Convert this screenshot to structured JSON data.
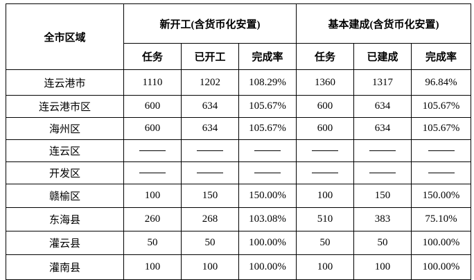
{
  "headers": {
    "region": "全市区域",
    "group1": "新开工(含货币化安置)",
    "group2": "基本建成(含货币化安置)",
    "sub": [
      "任务",
      "已开工",
      "完成率",
      "任务",
      "已建成",
      "完成率"
    ]
  },
  "rows": [
    {
      "region": "连云港市",
      "values": [
        "1110",
        "1202",
        "108.29%",
        "1360",
        "1317",
        "96.84%"
      ]
    },
    {
      "region": "连云港市区",
      "values": [
        "600",
        "634",
        "105.67%",
        "600",
        "634",
        "105.67%"
      ]
    },
    {
      "region": "海州区",
      "values": [
        "600",
        "634",
        "105.67%",
        "600",
        "634",
        "105.67%"
      ]
    },
    {
      "region": "连云区",
      "values": [
        "—",
        "—",
        "—",
        "—",
        "—",
        "—"
      ]
    },
    {
      "region": "开发区",
      "values": [
        "—",
        "—",
        "—",
        "—",
        "—",
        "—"
      ]
    },
    {
      "region": "赣榆区",
      "values": [
        "100",
        "150",
        "150.00%",
        "100",
        "150",
        "150.00%"
      ]
    },
    {
      "region": "东海县",
      "values": [
        "260",
        "268",
        "103.08%",
        "510",
        "383",
        "75.10%"
      ]
    },
    {
      "region": "灌云县",
      "values": [
        "50",
        "50",
        "100.00%",
        "50",
        "50",
        "100.00%"
      ]
    },
    {
      "region": "灌南县",
      "values": [
        "100",
        "100",
        "100.00%",
        "100",
        "100",
        "100.00%"
      ]
    }
  ]
}
